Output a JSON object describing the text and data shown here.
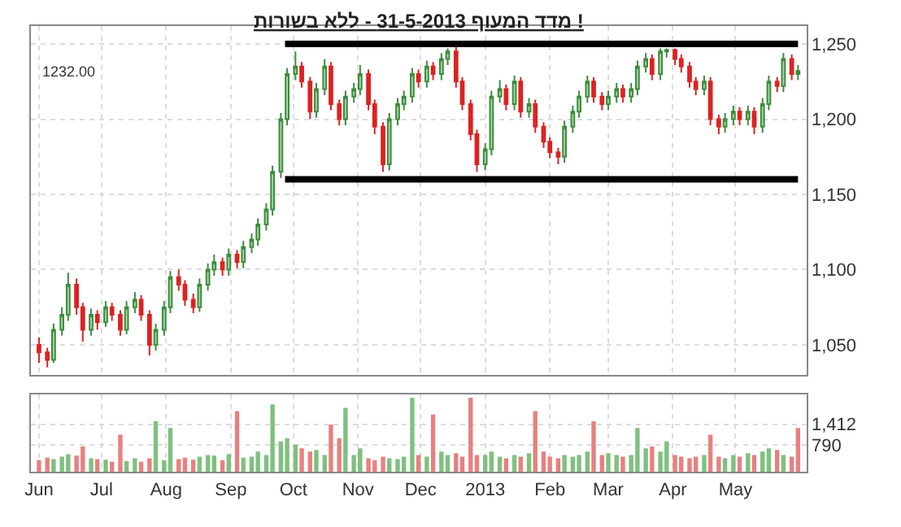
{
  "chart_data": [
    {
      "type": "candlestick",
      "title": "מדד המעוף 31-5-2013 - ללא בשורות !",
      "x": [
        "2012-06-01",
        "2012-06-05",
        "2012-06-08",
        "2012-06-12",
        "2012-06-15",
        "2012-06-19",
        "2012-06-22",
        "2012-06-26",
        "2012-06-29",
        "2012-07-03",
        "2012-07-06",
        "2012-07-10",
        "2012-07-13",
        "2012-07-17",
        "2012-07-20",
        "2012-07-24",
        "2012-07-27",
        "2012-07-31",
        "2012-08-03",
        "2012-08-07",
        "2012-08-10",
        "2012-08-14",
        "2012-08-17",
        "2012-08-21",
        "2012-08-24",
        "2012-08-28",
        "2012-08-31",
        "2012-09-04",
        "2012-09-07",
        "2012-09-11",
        "2012-09-14",
        "2012-09-18",
        "2012-09-21",
        "2012-09-25",
        "2012-09-28",
        "2012-10-02",
        "2012-10-05",
        "2012-10-09",
        "2012-10-12",
        "2012-10-16",
        "2012-10-19",
        "2012-10-23",
        "2012-10-26",
        "2012-10-30",
        "2012-11-02",
        "2012-11-06",
        "2012-11-09",
        "2012-11-13",
        "2012-11-16",
        "2012-11-20",
        "2012-11-23",
        "2012-11-27",
        "2012-11-30",
        "2012-12-04",
        "2012-12-07",
        "2012-12-11",
        "2012-12-14",
        "2012-12-18",
        "2012-12-21",
        "2012-12-25",
        "2012-12-28",
        "2013-01-01",
        "2013-01-04",
        "2013-01-08",
        "2013-01-11",
        "2013-01-15",
        "2013-01-18",
        "2013-01-22",
        "2013-01-25",
        "2013-01-29",
        "2013-02-01",
        "2013-02-05",
        "2013-02-08",
        "2013-02-12",
        "2013-02-15",
        "2013-02-19",
        "2013-02-22",
        "2013-02-26",
        "2013-03-01",
        "2013-03-05",
        "2013-03-08",
        "2013-03-12",
        "2013-03-15",
        "2013-03-19",
        "2013-03-22",
        "2013-03-26",
        "2013-03-29",
        "2013-04-02",
        "2013-04-05",
        "2013-04-09",
        "2013-04-12",
        "2013-04-16",
        "2013-04-19",
        "2013-04-23",
        "2013-04-26",
        "2013-04-30",
        "2013-05-03",
        "2013-05-07",
        "2013-05-10",
        "2013-05-14",
        "2013-05-17",
        "2013-05-21",
        "2013-05-24",
        "2013-05-28",
        "2013-05-31"
      ],
      "ohlc": [
        [
          1050,
          1055,
          1038,
          1045
        ],
        [
          1045,
          1048,
          1035,
          1040
        ],
        [
          1040,
          1064,
          1038,
          1060
        ],
        [
          1060,
          1075,
          1056,
          1070
        ],
        [
          1070,
          1098,
          1066,
          1090
        ],
        [
          1090,
          1094,
          1070,
          1075
        ],
        [
          1075,
          1078,
          1052,
          1060
        ],
        [
          1060,
          1074,
          1056,
          1070
        ],
        [
          1070,
          1073,
          1060,
          1065
        ],
        [
          1065,
          1079,
          1062,
          1075
        ],
        [
          1075,
          1078,
          1066,
          1070
        ],
        [
          1070,
          1073,
          1056,
          1060
        ],
        [
          1060,
          1079,
          1057,
          1075
        ],
        [
          1075,
          1085,
          1071,
          1080
        ],
        [
          1080,
          1083,
          1066,
          1070
        ],
        [
          1070,
          1073,
          1043,
          1050
        ],
        [
          1050,
          1064,
          1046,
          1060
        ],
        [
          1060,
          1079,
          1056,
          1075
        ],
        [
          1075,
          1099,
          1071,
          1095
        ],
        [
          1095,
          1100,
          1086,
          1090
        ],
        [
          1090,
          1093,
          1076,
          1080
        ],
        [
          1080,
          1084,
          1071,
          1075
        ],
        [
          1075,
          1094,
          1072,
          1090
        ],
        [
          1090,
          1104,
          1086,
          1100
        ],
        [
          1100,
          1110,
          1096,
          1105
        ],
        [
          1105,
          1108,
          1096,
          1100
        ],
        [
          1100,
          1114,
          1096,
          1110
        ],
        [
          1110,
          1113,
          1101,
          1105
        ],
        [
          1105,
          1119,
          1101,
          1115
        ],
        [
          1115,
          1124,
          1111,
          1120
        ],
        [
          1120,
          1134,
          1116,
          1130
        ],
        [
          1130,
          1144,
          1126,
          1140
        ],
        [
          1140,
          1169,
          1136,
          1165
        ],
        [
          1165,
          1204,
          1161,
          1200
        ],
        [
          1200,
          1234,
          1196,
          1230
        ],
        [
          1230,
          1245,
          1226,
          1235
        ],
        [
          1235,
          1238,
          1221,
          1225
        ],
        [
          1225,
          1228,
          1200,
          1205
        ],
        [
          1205,
          1224,
          1201,
          1220
        ],
        [
          1220,
          1240,
          1216,
          1235
        ],
        [
          1235,
          1238,
          1206,
          1210
        ],
        [
          1210,
          1213,
          1196,
          1200
        ],
        [
          1200,
          1219,
          1196,
          1215
        ],
        [
          1215,
          1224,
          1211,
          1220
        ],
        [
          1220,
          1236,
          1216,
          1230
        ],
        [
          1230,
          1233,
          1206,
          1210
        ],
        [
          1210,
          1213,
          1190,
          1195
        ],
        [
          1195,
          1198,
          1165,
          1170
        ],
        [
          1170,
          1204,
          1166,
          1200
        ],
        [
          1200,
          1214,
          1196,
          1210
        ],
        [
          1210,
          1219,
          1206,
          1215
        ],
        [
          1215,
          1234,
          1211,
          1230
        ],
        [
          1230,
          1233,
          1221,
          1225
        ],
        [
          1225,
          1239,
          1221,
          1235
        ],
        [
          1235,
          1238,
          1226,
          1230
        ],
        [
          1230,
          1244,
          1226,
          1240
        ],
        [
          1240,
          1247,
          1236,
          1245
        ],
        [
          1245,
          1248,
          1221,
          1225
        ],
        [
          1225,
          1228,
          1206,
          1210
        ],
        [
          1210,
          1213,
          1186,
          1190
        ],
        [
          1190,
          1193,
          1165,
          1170
        ],
        [
          1170,
          1184,
          1166,
          1180
        ],
        [
          1180,
          1219,
          1176,
          1215
        ],
        [
          1215,
          1226,
          1211,
          1220
        ],
        [
          1220,
          1223,
          1206,
          1210
        ],
        [
          1210,
          1229,
          1206,
          1225
        ],
        [
          1225,
          1228,
          1201,
          1205
        ],
        [
          1205,
          1214,
          1201,
          1210
        ],
        [
          1210,
          1213,
          1191,
          1195
        ],
        [
          1195,
          1198,
          1181,
          1185
        ],
        [
          1185,
          1188,
          1174,
          1178
        ],
        [
          1178,
          1181,
          1170,
          1175
        ],
        [
          1175,
          1199,
          1171,
          1195
        ],
        [
          1195,
          1209,
          1191,
          1205
        ],
        [
          1205,
          1219,
          1201,
          1215
        ],
        [
          1215,
          1229,
          1211,
          1225
        ],
        [
          1225,
          1228,
          1211,
          1215
        ],
        [
          1215,
          1218,
          1206,
          1210
        ],
        [
          1210,
          1219,
          1206,
          1215
        ],
        [
          1215,
          1224,
          1211,
          1220
        ],
        [
          1220,
          1223,
          1211,
          1215
        ],
        [
          1215,
          1224,
          1211,
          1220
        ],
        [
          1220,
          1239,
          1216,
          1235
        ],
        [
          1235,
          1244,
          1231,
          1240
        ],
        [
          1240,
          1243,
          1226,
          1230
        ],
        [
          1230,
          1247,
          1226,
          1245
        ],
        [
          1245,
          1247,
          1241,
          1246
        ],
        [
          1246,
          1247,
          1236,
          1240
        ],
        [
          1240,
          1243,
          1231,
          1235
        ],
        [
          1235,
          1238,
          1221,
          1225
        ],
        [
          1225,
          1228,
          1216,
          1220
        ],
        [
          1220,
          1229,
          1216,
          1225
        ],
        [
          1225,
          1228,
          1196,
          1200
        ],
        [
          1200,
          1203,
          1190,
          1195
        ],
        [
          1195,
          1204,
          1191,
          1200
        ],
        [
          1200,
          1209,
          1196,
          1205
        ],
        [
          1205,
          1208,
          1196,
          1200
        ],
        [
          1200,
          1209,
          1196,
          1205
        ],
        [
          1205,
          1208,
          1190,
          1195
        ],
        [
          1195,
          1214,
          1191,
          1210
        ],
        [
          1210,
          1229,
          1206,
          1225
        ],
        [
          1225,
          1228,
          1218,
          1222
        ],
        [
          1222,
          1244,
          1218,
          1240
        ],
        [
          1240,
          1243,
          1226,
          1230
        ],
        [
          1230,
          1236,
          1226,
          1232
        ]
      ],
      "series": [
        {
          "type": "line",
          "x": [
            "2012-09-27",
            "2013-05-31"
          ],
          "values": [
            1250,
            1250
          ],
          "color": "#000000"
        },
        {
          "type": "line",
          "x": [
            "2012-09-27",
            "2013-05-31"
          ],
          "values": [
            1160,
            1160
          ],
          "color": "#000000"
        }
      ],
      "annotations": [
        "1232.00"
      ],
      "xlim": [
        "2012-05-28",
        "2013-06-04"
      ],
      "xticks": [
        {
          "value": "2012-06-01",
          "label": null
        },
        {
          "value": "2012-07-01",
          "label": null
        },
        {
          "value": "2012-08-01",
          "label": null
        },
        {
          "value": "2012-09-01",
          "label": null
        },
        {
          "value": "2012-10-01",
          "label": null
        },
        {
          "value": "2012-11-01",
          "label": null
        },
        {
          "value": "2012-12-01",
          "label": null
        },
        {
          "value": "2013-01-01",
          "label": null
        },
        {
          "value": "2013-02-01",
          "label": null
        },
        {
          "value": "2013-03-01",
          "label": null
        },
        {
          "value": "2013-04-01",
          "label": null
        },
        {
          "value": "2013-05-01",
          "label": null
        }
      ],
      "ylim": [
        1030,
        1262
      ],
      "yticks": [
        {
          "value": 1050,
          "label": "1,050"
        },
        {
          "value": 1100,
          "label": "1,100"
        },
        {
          "value": 1150,
          "label": "1,150"
        },
        {
          "value": 1200,
          "label": "1,200"
        },
        {
          "value": 1250,
          "label": "1,250"
        }
      ],
      "grid": true,
      "tick_labels": "y"
    },
    {
      "type": "bar",
      "x": [
        "2012-06-01",
        "2012-06-05",
        "2012-06-08",
        "2012-06-12",
        "2012-06-15",
        "2012-06-19",
        "2012-06-22",
        "2012-06-26",
        "2012-06-29",
        "2012-07-03",
        "2012-07-06",
        "2012-07-10",
        "2012-07-13",
        "2012-07-17",
        "2012-07-20",
        "2012-07-24",
        "2012-07-27",
        "2012-07-31",
        "2012-08-03",
        "2012-08-07",
        "2012-08-10",
        "2012-08-14",
        "2012-08-17",
        "2012-08-21",
        "2012-08-24",
        "2012-08-28",
        "2012-08-31",
        "2012-09-04",
        "2012-09-07",
        "2012-09-11",
        "2012-09-14",
        "2012-09-18",
        "2012-09-21",
        "2012-09-25",
        "2012-09-28",
        "2012-10-02",
        "2012-10-05",
        "2012-10-09",
        "2012-10-12",
        "2012-10-16",
        "2012-10-19",
        "2012-10-23",
        "2012-10-26",
        "2012-10-30",
        "2012-11-02",
        "2012-11-06",
        "2012-11-09",
        "2012-11-13",
        "2012-11-16",
        "2012-11-20",
        "2012-11-23",
        "2012-11-27",
        "2012-11-30",
        "2012-12-04",
        "2012-12-07",
        "2012-12-11",
        "2012-12-14",
        "2012-12-18",
        "2012-12-21",
        "2012-12-25",
        "2012-12-28",
        "2013-01-01",
        "2013-01-04",
        "2013-01-08",
        "2013-01-11",
        "2013-01-15",
        "2013-01-18",
        "2013-01-22",
        "2013-01-25",
        "2013-01-29",
        "2013-02-01",
        "2013-02-05",
        "2013-02-08",
        "2013-02-12",
        "2013-02-15",
        "2013-02-19",
        "2013-02-22",
        "2013-02-26",
        "2013-03-01",
        "2013-03-05",
        "2013-03-08",
        "2013-03-12",
        "2013-03-15",
        "2013-03-19",
        "2013-03-22",
        "2013-03-26",
        "2013-03-29",
        "2013-04-02",
        "2013-04-05",
        "2013-04-09",
        "2013-04-12",
        "2013-04-16",
        "2013-04-19",
        "2013-04-23",
        "2013-04-26",
        "2013-04-30",
        "2013-05-03",
        "2013-05-07",
        "2013-05-10",
        "2013-05-14",
        "2013-05-17",
        "2013-05-21",
        "2013-05-24",
        "2013-05-28",
        "2013-05-31"
      ],
      "values": [
        350,
        420,
        380,
        450,
        520,
        480,
        750,
        400,
        380,
        360,
        300,
        1100,
        320,
        400,
        300,
        400,
        1500,
        350,
        1300,
        380,
        420,
        360,
        450,
        500,
        480,
        350,
        520,
        1800,
        420,
        450,
        600,
        500,
        2000,
        900,
        1000,
        800,
        700,
        600,
        650,
        500,
        1400,
        1000,
        1900,
        500,
        700,
        400,
        350,
        450,
        400,
        380,
        450,
        2200,
        500,
        450,
        1700,
        600,
        500,
        550,
        450,
        2200,
        500,
        500,
        600,
        450,
        400,
        500,
        450,
        550,
        1800,
        600,
        450,
        400,
        500,
        450,
        500,
        600,
        1500,
        500,
        550,
        500,
        450,
        500,
        1300,
        700,
        750,
        600,
        900,
        500,
        450,
        400,
        450,
        500,
        1100,
        450,
        400,
        500,
        450,
        550,
        500,
        600,
        700,
        650,
        500,
        450,
        1300
      ],
      "colors": [
        "#e88080",
        "#e88080",
        "#7fc07f",
        "#7fc07f",
        "#7fc07f",
        "#e88080",
        "#e88080",
        "#7fc07f",
        "#e88080",
        "#7fc07f",
        "#e88080",
        "#e88080",
        "#7fc07f",
        "#7fc07f",
        "#e88080",
        "#e88080",
        "#7fc07f",
        "#7fc07f",
        "#7fc07f",
        "#e88080",
        "#e88080",
        "#e88080",
        "#7fc07f",
        "#7fc07f",
        "#7fc07f",
        "#e88080",
        "#7fc07f",
        "#e88080",
        "#7fc07f",
        "#7fc07f",
        "#7fc07f",
        "#7fc07f",
        "#7fc07f",
        "#7fc07f",
        "#7fc07f",
        "#7fc07f",
        "#e88080",
        "#e88080",
        "#7fc07f",
        "#7fc07f",
        "#e88080",
        "#e88080",
        "#7fc07f",
        "#7fc07f",
        "#7fc07f",
        "#e88080",
        "#e88080",
        "#e88080",
        "#7fc07f",
        "#7fc07f",
        "#7fc07f",
        "#7fc07f",
        "#e88080",
        "#7fc07f",
        "#e88080",
        "#7fc07f",
        "#7fc07f",
        "#e88080",
        "#e88080",
        "#e88080",
        "#e88080",
        "#7fc07f",
        "#7fc07f",
        "#7fc07f",
        "#e88080",
        "#7fc07f",
        "#e88080",
        "#7fc07f",
        "#e88080",
        "#e88080",
        "#e88080",
        "#e88080",
        "#7fc07f",
        "#7fc07f",
        "#7fc07f",
        "#7fc07f",
        "#e88080",
        "#e88080",
        "#7fc07f",
        "#7fc07f",
        "#e88080",
        "#7fc07f",
        "#7fc07f",
        "#7fc07f",
        "#e88080",
        "#7fc07f",
        "#7fc07f",
        "#e88080",
        "#e88080",
        "#e88080",
        "#e88080",
        "#7fc07f",
        "#e88080",
        "#e88080",
        "#7fc07f",
        "#7fc07f",
        "#e88080",
        "#7fc07f",
        "#e88080",
        "#7fc07f",
        "#7fc07f",
        "#e88080",
        "#7fc07f",
        "#e88080",
        "#e88080"
      ],
      "xlim": [
        "2012-05-28",
        "2013-06-04"
      ],
      "xticks": [
        {
          "value": "2012-06-01",
          "label": "Jun"
        },
        {
          "value": "2012-07-01",
          "label": "Jul"
        },
        {
          "value": "2012-08-01",
          "label": "Aug"
        },
        {
          "value": "2012-09-01",
          "label": "Sep"
        },
        {
          "value": "2012-10-01",
          "label": "Oct"
        },
        {
          "value": "2012-11-01",
          "label": "Nov"
        },
        {
          "value": "2012-12-01",
          "label": "Dec"
        },
        {
          "value": "2013-01-01",
          "label": "2013"
        },
        {
          "value": "2013-02-01",
          "label": "Feb"
        },
        {
          "value": "2013-03-01",
          "label": "Mar"
        },
        {
          "value": "2013-04-01",
          "label": "Apr"
        },
        {
          "value": "2013-05-01",
          "label": "May"
        }
      ],
      "ylim": [
        0,
        2300
      ],
      "yticks": [
        790,
        {
          "value": 1412,
          "label": "1,412"
        }
      ],
      "grid": true
    }
  ]
}
